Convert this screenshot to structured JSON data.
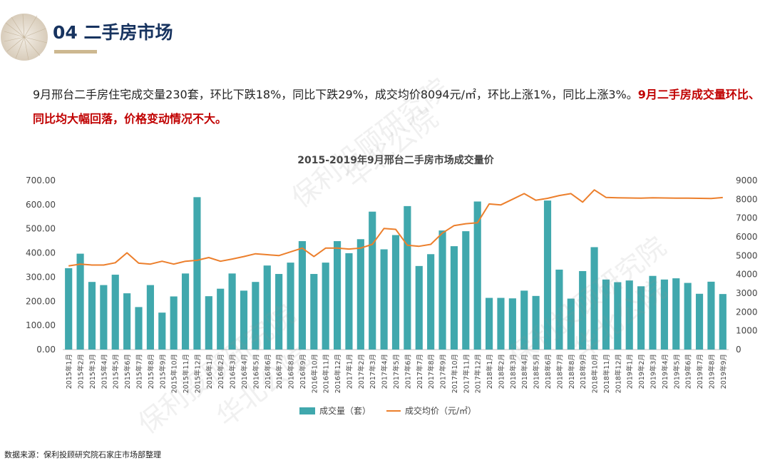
{
  "header": {
    "section_title": "04 二手房市场"
  },
  "summary": {
    "text": "9月邢台二手房住宅成交量230套，环比下跌18%，同比下跌29%，成交均价8094元/㎡，环比上涨1%，同比上涨3%。",
    "highlight": "9月二手房成交量环比、同比均大幅回落，价格变动情况不大。"
  },
  "source": "数据来源：保利投顾研究院石家庄市场部整理",
  "watermarks": [
    "保利投顾研究院",
    "华北公院",
    "保利投顾研究院",
    "华北公院",
    "保利投顾研究院",
    "华北公院"
  ],
  "colors": {
    "bar": "#40a8ad",
    "line": "#ec7f2c",
    "title_blue": "#17335f",
    "highlight_red": "#c00000",
    "underline": "#cdb890"
  },
  "chart_data": {
    "type": "bar",
    "title": "2015-2019年9月邢台二手房市场成交量价",
    "categories": [
      "2015年1月",
      "2015年2月",
      "2015年3月",
      "2015年4月",
      "2015年5月",
      "2015年6月",
      "2015年7月",
      "2015年8月",
      "2015年9月",
      "2015年10月",
      "2015年11月",
      "2015年12月",
      "2016年1月",
      "2016年2月",
      "2016年3月",
      "2016年4月",
      "2016年5月",
      "2016年6月",
      "2016年7月",
      "2016年8月",
      "2016年9月",
      "2016年10月",
      "2016年11月",
      "2016年12月",
      "2017年1月",
      "2017年2月",
      "2017年3月",
      "2017年4月",
      "2017年5月",
      "2017年6月",
      "2017年7月",
      "2017年8月",
      "2017年9月",
      "2017年10月",
      "2017年11月",
      "2017年12月",
      "2018年1月",
      "2018年2月",
      "2018年3月",
      "2018年4月",
      "2018年5月",
      "2018年6月",
      "2018年7月",
      "2018年8月",
      "2018年9月",
      "2018年10月",
      "2018年11月",
      "2018年12月",
      "2019年1月",
      "2019年2月",
      "2019年3月",
      "2019年4月",
      "2019年5月",
      "2019年6月",
      "2019年7月",
      "2019年8月",
      "2019年9月"
    ],
    "series": [
      {
        "name": "成交量（套）",
        "type": "bar",
        "axis": "left",
        "values": [
          337,
          397,
          280,
          267,
          310,
          233,
          176,
          267,
          153,
          220,
          315,
          631,
          221,
          252,
          315,
          244,
          280,
          348,
          313,
          360,
          449,
          313,
          360,
          449,
          399,
          457,
          571,
          415,
          474,
          594,
          346,
          395,
          493,
          428,
          490,
          613,
          214,
          214,
          212,
          244,
          222,
          617,
          331,
          211,
          325,
          424,
          290,
          279,
          286,
          262,
          305,
          290,
          295,
          276,
          231,
          281,
          230
        ]
      },
      {
        "name": "成交均价（元/㎡）",
        "type": "line",
        "axis": "right",
        "values": [
          4450,
          4550,
          4500,
          4500,
          4620,
          5150,
          4600,
          4550,
          4700,
          4550,
          4700,
          4750,
          4900,
          4700,
          4820,
          4950,
          5100,
          5050,
          5000,
          5200,
          5400,
          4950,
          5400,
          5400,
          5350,
          5400,
          5600,
          6450,
          6400,
          5550,
          5500,
          5600,
          6200,
          6600,
          6700,
          6750,
          7750,
          7700,
          8000,
          8300,
          7950,
          8050,
          8200,
          8300,
          7850,
          8500,
          8100,
          8080,
          8070,
          8060,
          8080,
          8070,
          8060,
          8060,
          8050,
          8040,
          8094
        ]
      }
    ],
    "y_left": {
      "min": 0,
      "max": 700,
      "ticks": [
        "0.00",
        "100.00",
        "200.00",
        "300.00",
        "400.00",
        "500.00",
        "600.00",
        "700.00"
      ]
    },
    "y_right": {
      "min": 0,
      "max": 9000,
      "ticks": [
        "0",
        "1000",
        "2000",
        "3000",
        "4000",
        "5000",
        "6000",
        "7000",
        "8000",
        "9000"
      ]
    },
    "grid": false,
    "legend_position": "bottom"
  }
}
